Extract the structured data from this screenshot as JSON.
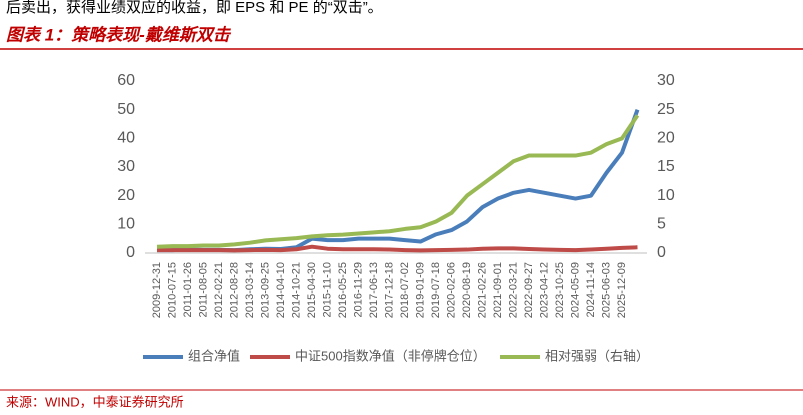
{
  "intro": "后卖出，获得业绩双应的收益，即 EPS 和 PE 的“双击”。",
  "figure_title": "图表 1：策略表现-戴维斯双击",
  "source": "来源：WIND，中泰证券研究所",
  "chart_data": {
    "type": "line",
    "categories": [
      "2009-12-31",
      "2010-07-15",
      "2011-01-26",
      "2011-08-05",
      "2012-02-21",
      "2012-08-28",
      "2013-03-14",
      "2013-09-25",
      "2014-04-10",
      "2014-10-21",
      "2015-04-30",
      "2015-11-10",
      "2016-05-25",
      "2016-11-29",
      "2017-06-13",
      "2017-12-18",
      "2018-07-02",
      "2019-01-09",
      "2019-07-18",
      "2020-02-06",
      "2020-08-19",
      "2021-02-26",
      "2021-09-01",
      "2022-03-21",
      "2022-09-27",
      "2023-04-12",
      "2023-10-25",
      "2024-05-09",
      "2024-11-14",
      "2025-06-03",
      "2025-12-09",
      null
    ],
    "series": [
      {
        "name": "组合净值",
        "color": "#4a7ebb",
        "values": [
          1,
          1,
          1.2,
          1.1,
          1.1,
          1,
          1.3,
          1.5,
          1.4,
          2,
          5,
          4.5,
          4.5,
          5,
          5,
          5,
          4.5,
          4,
          6.5,
          8,
          11,
          16,
          19,
          21,
          22,
          21,
          20,
          19,
          20,
          28,
          35,
          50
        ]
      },
      {
        "name": "中证500指数净值（非停牌仓位）",
        "color": "#be4b48",
        "values": [
          1,
          1,
          1,
          1,
          1,
          0.9,
          1,
          1.1,
          1,
          1.3,
          2.2,
          1.5,
          1.3,
          1.3,
          1.3,
          1.2,
          1,
          0.9,
          1,
          1.1,
          1.2,
          1.5,
          1.6,
          1.6,
          1.4,
          1.2,
          1.1,
          1,
          1.2,
          1.5,
          1.8,
          2
        ]
      },
      {
        "name": "相对强弱（右轴）",
        "color": "#98b954",
        "axis": "y2",
        "values": [
          1.1,
          1.2,
          1.2,
          1.3,
          1.3,
          1.5,
          1.8,
          2.2,
          2.4,
          2.6,
          2.9,
          3.1,
          3.2,
          3.4,
          3.6,
          3.8,
          4.2,
          4.5,
          5.5,
          7,
          10,
          12,
          14,
          16,
          17,
          17,
          17,
          17,
          17.5,
          19,
          20,
          24
        ]
      }
    ],
    "ylim": [
      0,
      60
    ],
    "yticks": [
      0,
      10,
      20,
      30,
      40,
      50,
      60
    ],
    "y2lim": [
      0,
      30
    ],
    "y2ticks": [
      0,
      5,
      10,
      15,
      20,
      25,
      30
    ],
    "grid": false,
    "legend": "bottom"
  }
}
